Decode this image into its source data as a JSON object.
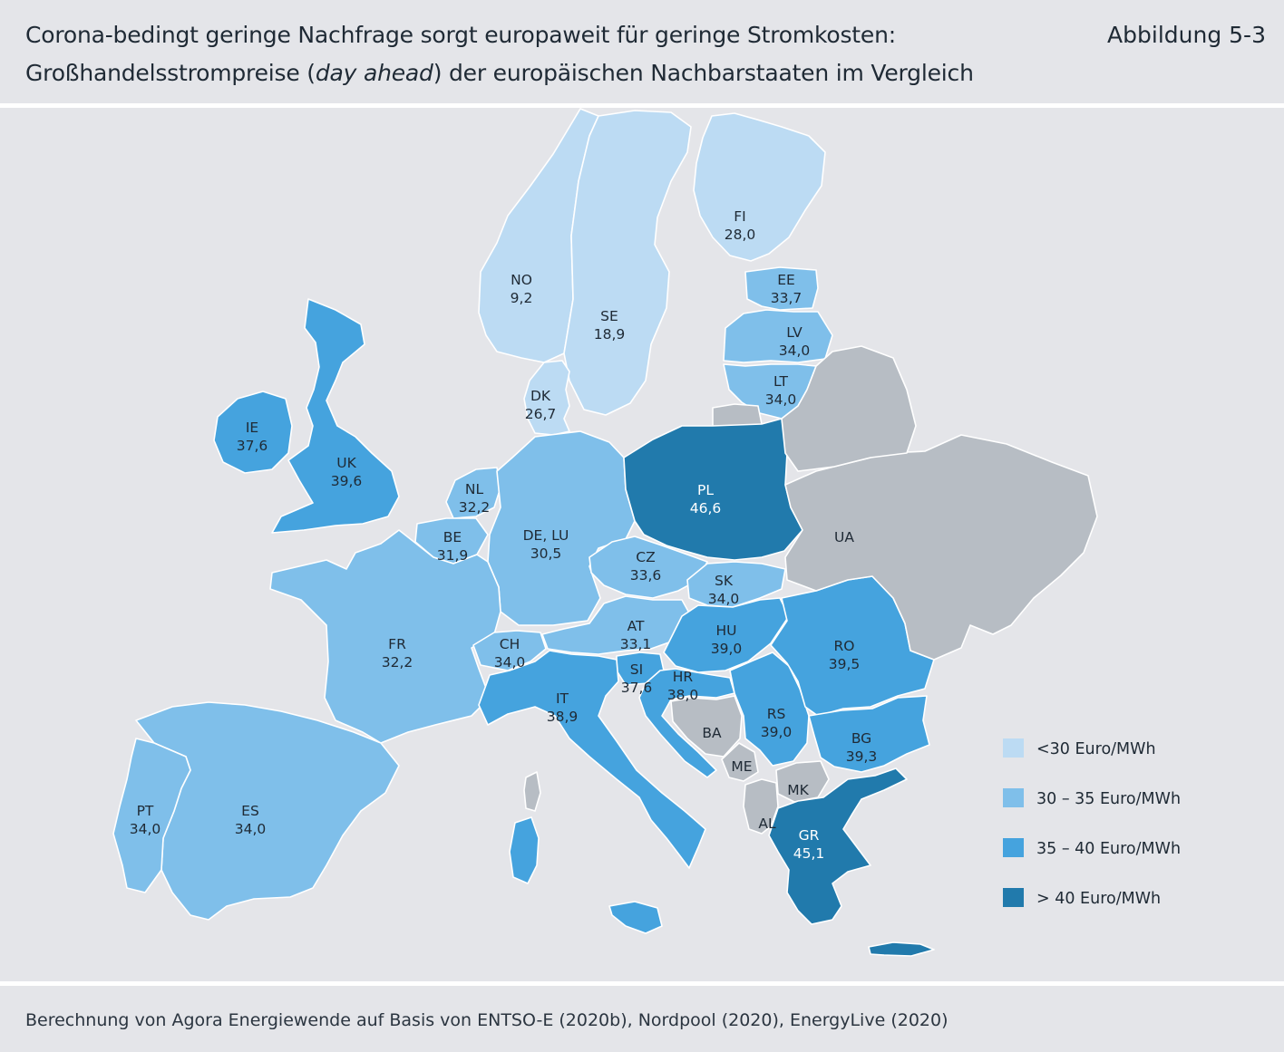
{
  "header": {
    "title_line1": "Corona-bedingt geringe Nachfrage sorgt europaweit für geringe Stromkosten:",
    "title_line2_before": "Großhandelsstrompreise (",
    "title_line2_italic": "day ahead",
    "title_line2_after": ") der europäischen Nachbarstaaten im Vergleich",
    "figure_number": "Abbildung 5-3"
  },
  "colors": {
    "below_30": "#bcdbf3",
    "from_30_to_35": "#7fbfea",
    "from_35_to_40": "#45a3de",
    "above_40": "#217aac",
    "no_data": "#b7bdc4",
    "background": "#e4e5e9"
  },
  "countries": [
    {
      "code": "NO",
      "value": "9,2",
      "bin": "below_30"
    },
    {
      "code": "SE",
      "value": "18,9",
      "bin": "below_30"
    },
    {
      "code": "FI",
      "value": "28,0",
      "bin": "below_30"
    },
    {
      "code": "DK",
      "value": "26,7",
      "bin": "below_30"
    },
    {
      "code": "EE",
      "value": "33,7",
      "bin": "from_30_to_35"
    },
    {
      "code": "LV",
      "value": "34,0",
      "bin": "from_30_to_35"
    },
    {
      "code": "LT",
      "value": "34,0",
      "bin": "from_30_to_35"
    },
    {
      "code": "IE",
      "value": "37,6",
      "bin": "from_35_to_40"
    },
    {
      "code": "UK",
      "value": "39,6",
      "bin": "from_35_to_40"
    },
    {
      "code": "NL",
      "value": "32,2",
      "bin": "from_30_to_35"
    },
    {
      "code": "BE",
      "value": "31,9",
      "bin": "from_30_to_35"
    },
    {
      "code": "DE, LU",
      "value": "30,5",
      "bin": "from_30_to_35"
    },
    {
      "code": "PL",
      "value": "46,6",
      "bin": "above_40"
    },
    {
      "code": "CZ",
      "value": "33,6",
      "bin": "from_30_to_35"
    },
    {
      "code": "SK",
      "value": "34,0",
      "bin": "from_30_to_35"
    },
    {
      "code": "FR",
      "value": "32,2",
      "bin": "from_30_to_35"
    },
    {
      "code": "CH",
      "value": "34,0",
      "bin": "from_30_to_35"
    },
    {
      "code": "AT",
      "value": "33,1",
      "bin": "from_30_to_35"
    },
    {
      "code": "HU",
      "value": "39,0",
      "bin": "from_35_to_40"
    },
    {
      "code": "RO",
      "value": "39,5",
      "bin": "from_35_to_40"
    },
    {
      "code": "SI",
      "value": "37,6",
      "bin": "from_35_to_40"
    },
    {
      "code": "HR",
      "value": "38,0",
      "bin": "from_35_to_40"
    },
    {
      "code": "IT",
      "value": "38,9",
      "bin": "from_35_to_40"
    },
    {
      "code": "RS",
      "value": "39,0",
      "bin": "from_35_to_40"
    },
    {
      "code": "BG",
      "value": "39,3",
      "bin": "from_35_to_40"
    },
    {
      "code": "GR",
      "value": "45,1",
      "bin": "above_40"
    },
    {
      "code": "PT",
      "value": "34,0",
      "bin": "from_30_to_35"
    },
    {
      "code": "ES",
      "value": "34,0",
      "bin": "from_30_to_35"
    },
    {
      "code": "UA",
      "value": "",
      "bin": "no_data"
    },
    {
      "code": "BA",
      "value": "",
      "bin": "no_data"
    },
    {
      "code": "ME",
      "value": "",
      "bin": "no_data"
    },
    {
      "code": "MK",
      "value": "",
      "bin": "no_data"
    },
    {
      "code": "AL",
      "value": "",
      "bin": "no_data"
    }
  ],
  "legend": [
    {
      "label": "<30 Euro/MWh",
      "color": "#bcdbf3"
    },
    {
      "label": "30 – 35 Euro/MWh",
      "color": "#7fbfea"
    },
    {
      "label": "35 – 40 Euro/MWh",
      "color": "#45a3de"
    },
    {
      "label": "> 40 Euro/MWh",
      "color": "#217aac"
    }
  ],
  "source": "Berechnung von Agora Energiewende auf Basis von ENTSO-E (2020b), Nordpool (2020), EnergyLive (2020)"
}
